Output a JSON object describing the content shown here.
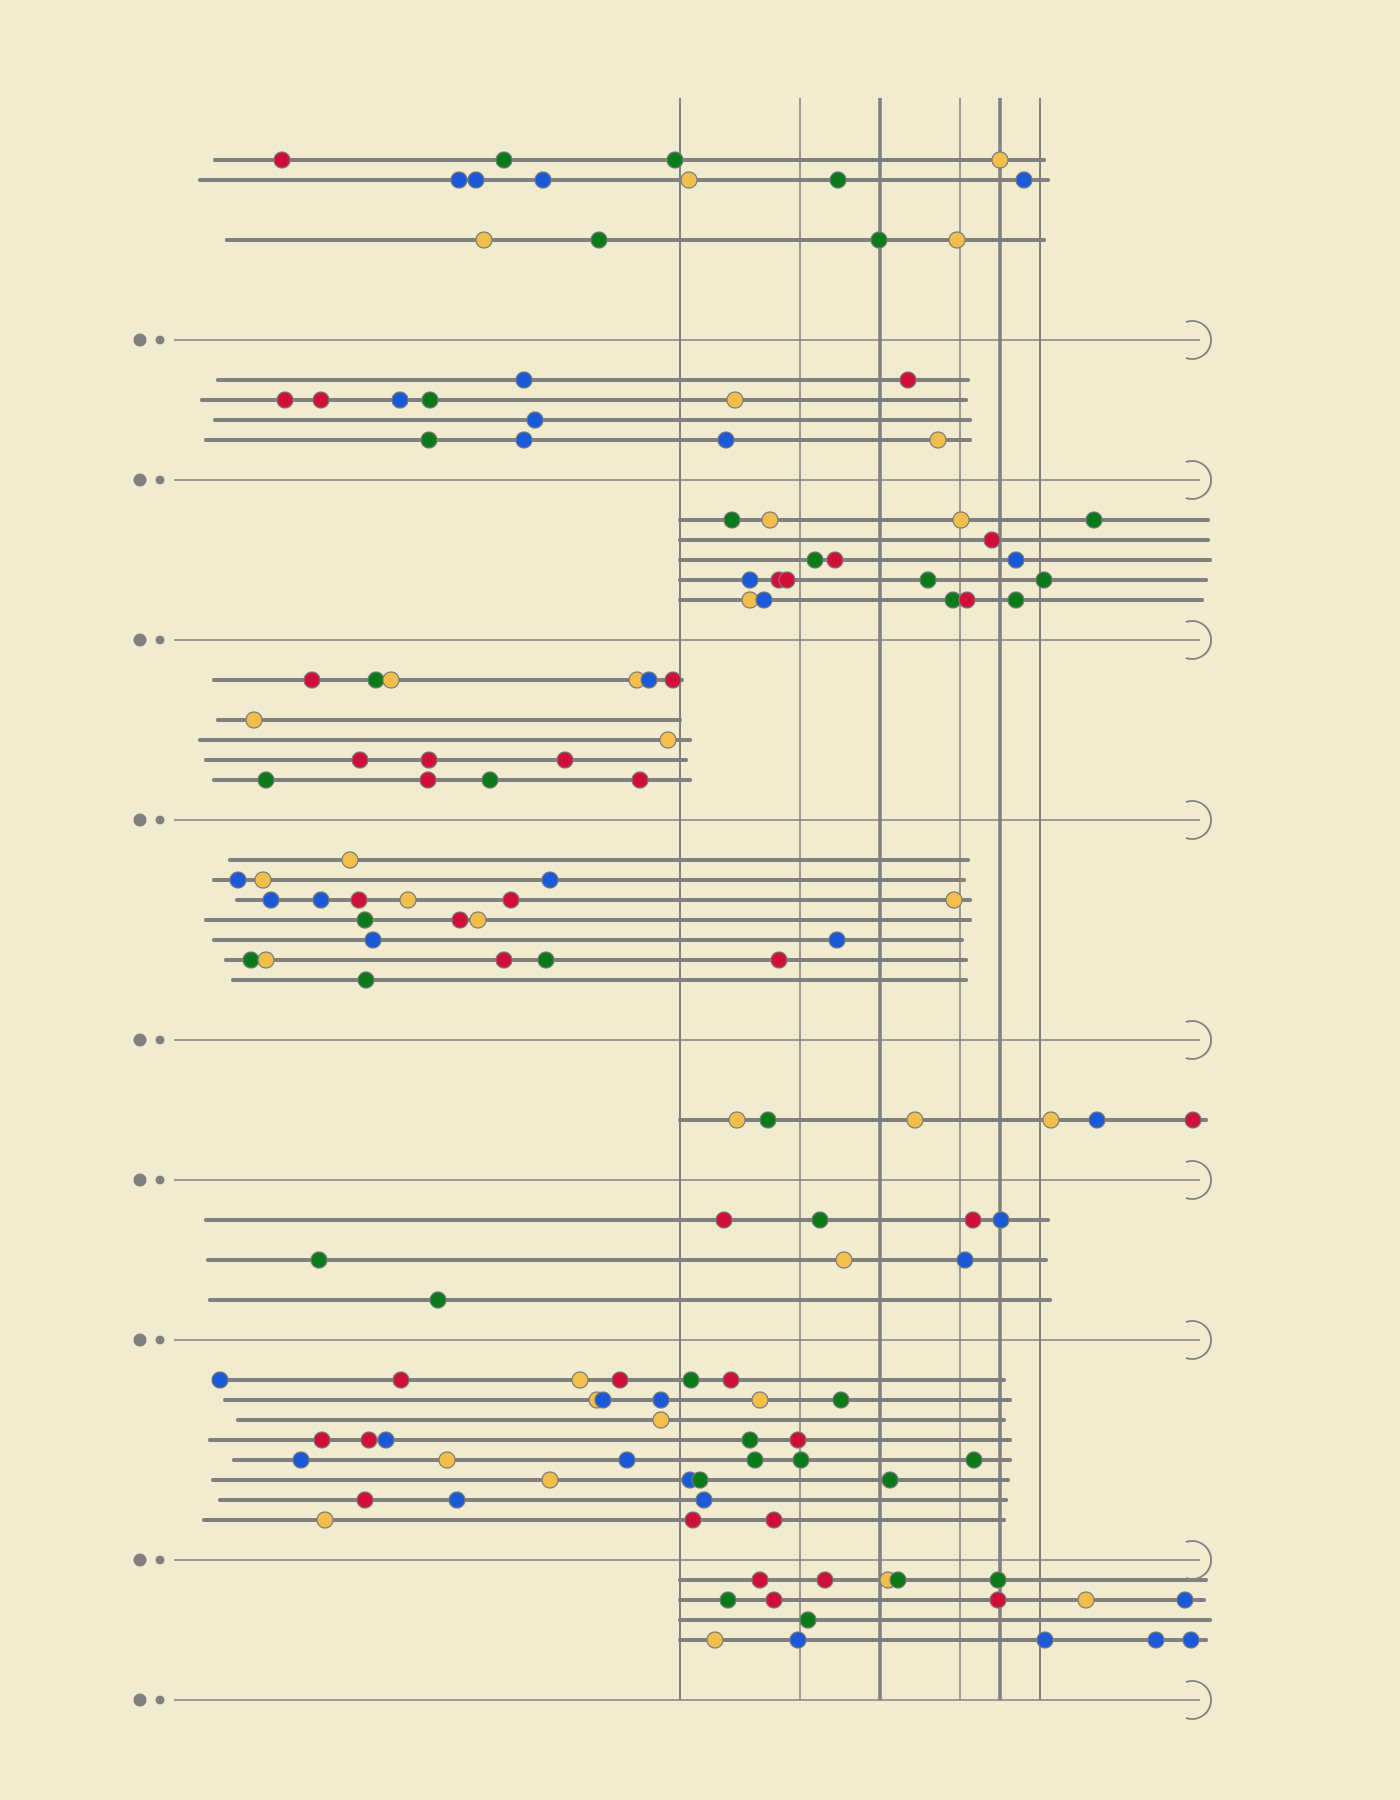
{
  "colors": {
    "background": "#f1ebcf",
    "line": "#808080",
    "red": "#d0103a",
    "green": "#0a7a1a",
    "blue": "#1a5ad8",
    "yellow": "#f2c04a"
  },
  "dividers": {
    "count": 10,
    "left_marker": "double-dot",
    "right_marker": "open-arc"
  },
  "vertical_lines": 6,
  "bands": [
    {
      "lines": [
        [
          "r",
          "g",
          "g",
          "y"
        ],
        [
          "b",
          "b",
          "b",
          "y",
          "g",
          "b"
        ],
        [
          "y",
          "g",
          "g",
          "y"
        ]
      ]
    },
    {
      "lines": [
        [
          "b",
          "r"
        ],
        [
          "r",
          "r",
          "b",
          "g",
          "y"
        ],
        [
          "b"
        ],
        [
          "g",
          "b",
          "b",
          "y"
        ]
      ]
    },
    {
      "lines": [
        [
          "g",
          "y",
          "y",
          "g"
        ],
        [
          "r"
        ],
        [
          "g",
          "r",
          "b"
        ],
        [
          "b",
          "r",
          "r",
          "g",
          "g"
        ],
        [
          "y",
          "b",
          "g",
          "r",
          "g"
        ]
      ]
    },
    {
      "lines": [
        [
          "r",
          "g",
          "y",
          "y",
          "b",
          "r"
        ],
        [
          "y"
        ],
        [
          "y"
        ],
        [
          "r",
          "r",
          "r"
        ],
        [
          "g",
          "r",
          "g",
          "r"
        ]
      ]
    },
    {
      "lines": [
        [
          "y"
        ],
        [
          "b",
          "y",
          "b"
        ],
        [
          "b",
          "b",
          "r",
          "y",
          "r",
          "y"
        ],
        [
          "g",
          "r",
          "y"
        ],
        [
          "b",
          "b"
        ],
        [
          "g",
          "y",
          "r",
          "g",
          "r"
        ],
        [
          "g"
        ]
      ]
    },
    {
      "lines": [
        [
          "y",
          "g",
          "y",
          "y",
          "b",
          "r"
        ]
      ]
    },
    {
      "lines": [
        [
          "r",
          "g",
          "r",
          "b"
        ],
        [
          "g",
          "y",
          "b"
        ],
        [
          "g"
        ]
      ]
    },
    {
      "lines": [
        [
          "b",
          "r",
          "y",
          "r",
          "g",
          "r"
        ],
        [
          "y",
          "b",
          "b",
          "y",
          "g"
        ],
        [
          "y"
        ],
        [
          "r",
          "r",
          "b",
          "g",
          "r"
        ],
        [
          "b",
          "y",
          "b",
          "g",
          "g",
          "g"
        ],
        [
          "y",
          "b",
          "g",
          "g"
        ],
        [
          "r",
          "b",
          "b"
        ],
        [
          "y",
          "r",
          "r"
        ]
      ]
    },
    {
      "lines": [
        [
          "r",
          "r",
          "y",
          "g",
          "g"
        ],
        [
          "g",
          "r",
          "r",
          "y",
          "b"
        ],
        [
          "g"
        ],
        [
          "y",
          "b",
          "b",
          "b",
          "b"
        ]
      ]
    }
  ]
}
